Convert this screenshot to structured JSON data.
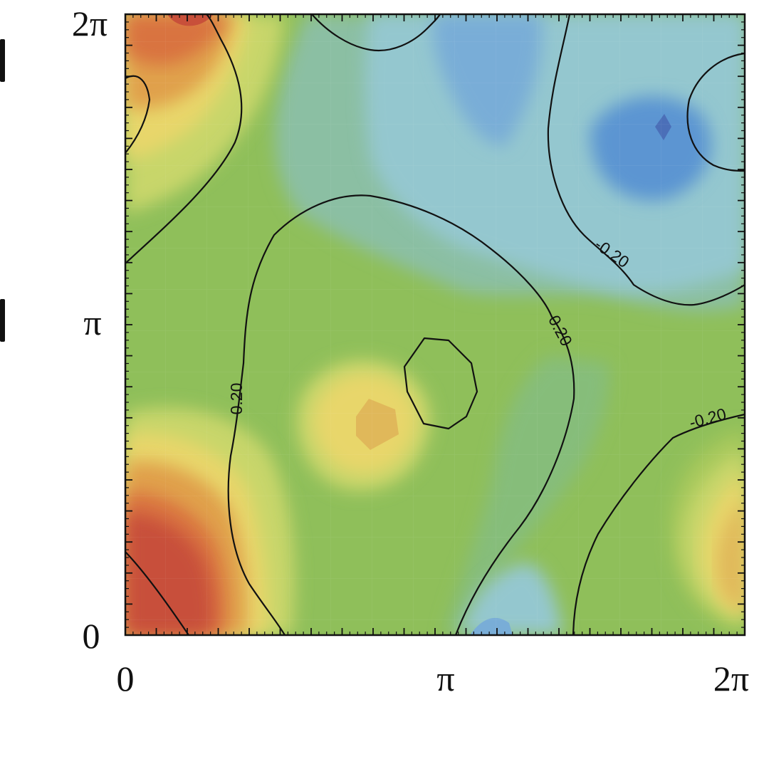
{
  "chart_data": {
    "type": "heatmap",
    "title": "",
    "xlabel": "",
    "ylabel": "",
    "xlim": [
      0,
      6.2832
    ],
    "ylim": [
      0,
      6.2832
    ],
    "x_ticks": [
      {
        "value": 0,
        "label": "0"
      },
      {
        "value": 3.1416,
        "label": "π"
      },
      {
        "value": 6.2832,
        "label": "2π"
      }
    ],
    "y_ticks": [
      {
        "value": 0,
        "label": "0"
      },
      {
        "value": 3.1416,
        "label": "π"
      },
      {
        "value": 6.2832,
        "label": "2π"
      }
    ],
    "colormap": [
      "#c8503a",
      "#d9733f",
      "#e0a04c",
      "#e8d66a",
      "#c8d66a",
      "#a6c85c",
      "#8fbf5a",
      "#86bd7a",
      "#8bbfa3",
      "#94c7cf",
      "#79add7",
      "#5b95d2",
      "#4b6fb8"
    ],
    "contour_level_labels": [
      "0.20",
      "0.20",
      "-0.20",
      "-0.20"
    ],
    "features": [
      {
        "type": "maximum",
        "x": 0.65,
        "y": 0.5,
        "color": "#c9503a"
      },
      {
        "type": "maximum",
        "x": 0.65,
        "y": 6.2,
        "color": "#d9733f"
      },
      {
        "type": "maximum",
        "x": 2.35,
        "y": 2.1,
        "color": "#e0b85a"
      },
      {
        "type": "maximum",
        "x": 6.2,
        "y": 0.8,
        "color": "#e0b85a"
      },
      {
        "type": "minimum",
        "x": 5.3,
        "y": 5.05,
        "color": "#4b6fb8"
      },
      {
        "type": "minimum",
        "x": 3.8,
        "y": 5.7,
        "color": "#79add7"
      },
      {
        "type": "minimum",
        "x": 3.5,
        "y": 0.1,
        "color": "#79add7"
      }
    ]
  },
  "page": {
    "x_tick_0": "0",
    "x_tick_pi": "π",
    "x_tick_2pi": "2π",
    "y_tick_0": "0",
    "y_tick_pi": "π",
    "y_tick_2pi": "2π",
    "contour_label_1": "0.20",
    "contour_label_2": "0.20",
    "contour_label_3": "-0.20",
    "contour_label_4": "-0.20"
  }
}
